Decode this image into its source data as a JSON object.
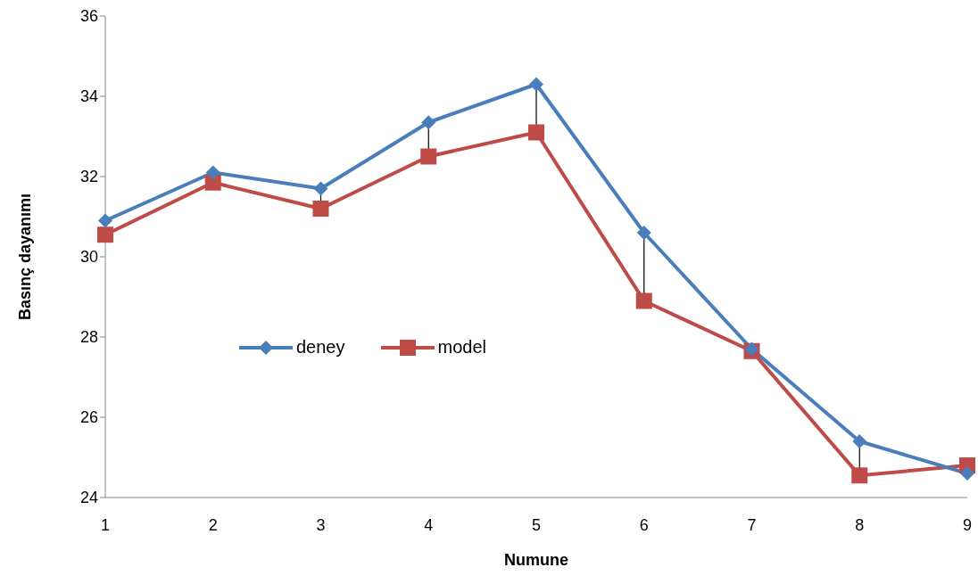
{
  "chart_data": {
    "type": "line",
    "xlabel": "Numune",
    "ylabel": "Basınç dayanımı",
    "categories": [
      "1",
      "2",
      "3",
      "4",
      "5",
      "6",
      "7",
      "8",
      "9"
    ],
    "series": [
      {
        "name": "deney",
        "color": "#4a7ebb",
        "values": [
          30.9,
          32.1,
          31.7,
          33.35,
          34.3,
          30.6,
          27.7,
          25.4,
          24.6
        ],
        "marker": "diamond"
      },
      {
        "name": "model",
        "color": "#be4b48",
        "values": [
          30.55,
          31.85,
          31.2,
          32.5,
          33.1,
          28.9,
          27.65,
          24.55,
          24.8
        ],
        "marker": "square"
      }
    ],
    "ylim": [
      24,
      36
    ],
    "yticks": [
      24,
      26,
      28,
      30,
      32,
      34,
      36
    ],
    "grid": false,
    "legend": "center left",
    "line_style": "solid"
  }
}
